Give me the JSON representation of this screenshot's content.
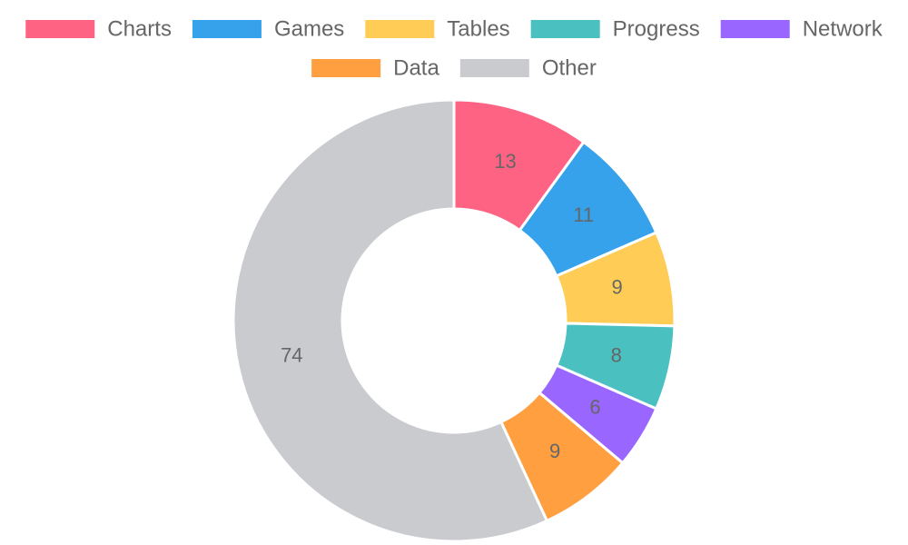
{
  "chart_data": {
    "type": "doughnut",
    "categories": [
      "Charts",
      "Games",
      "Tables",
      "Progress",
      "Network",
      "Data",
      "Other"
    ],
    "values": [
      13,
      11,
      9,
      8,
      6,
      9,
      74
    ],
    "colors": [
      "#ff6384",
      "#36a2eb",
      "#ffcd56",
      "#4bc0c0",
      "#9966ff",
      "#ff9f40",
      "#c9cbcf"
    ],
    "legend": "top"
  }
}
